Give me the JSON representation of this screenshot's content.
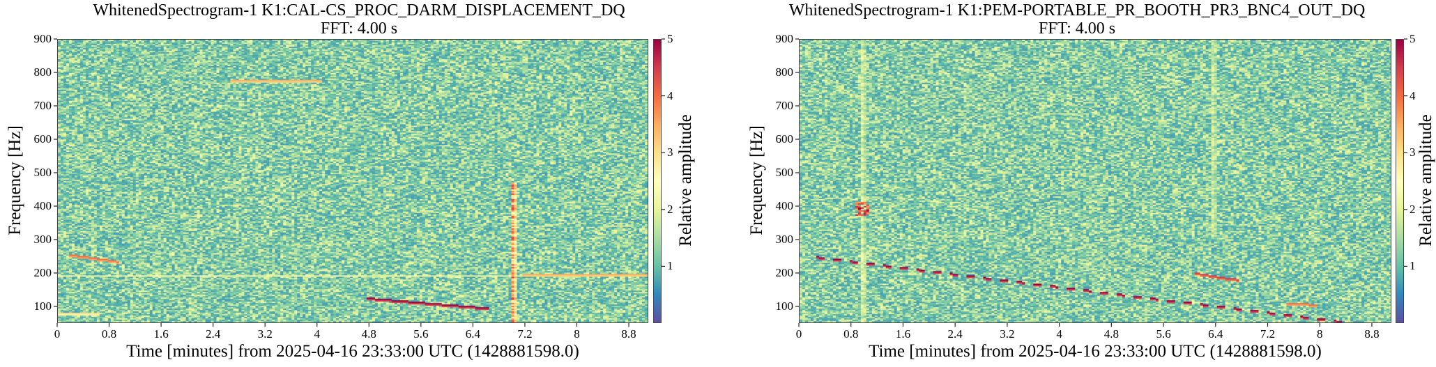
{
  "chart_data": [
    {
      "type": "heatmap",
      "title_line1": "WhitenedSpectrogram-1 K1:CAL-CS_PROC_DARM_DISPLACEMENT_DQ",
      "title_line2": "FFT: 4.00 s",
      "xlabel": "Time [minutes] from 2025-04-16 23:33:00 UTC (1428881598.0)",
      "ylabel": "Frequency [Hz]",
      "colorbar_label": "Relative amplitude",
      "xlim": [
        0,
        9.1
      ],
      "ylim": [
        50,
        900
      ],
      "x_ticks": [
        "0",
        "0.8",
        "1.6",
        "2.4",
        "3.2",
        "4",
        "4.8",
        "5.6",
        "6.4",
        "7.2",
        "8",
        "8.8"
      ],
      "y_ticks": [
        "100",
        "200",
        "300",
        "400",
        "500",
        "600",
        "700",
        "800",
        "900"
      ],
      "colorbar_range": [
        0,
        5
      ],
      "colorbar_ticks": [
        "1",
        "2",
        "3",
        "4",
        "5"
      ],
      "colormap": "Spectral_r",
      "features": [
        {
          "kind": "vertical_band",
          "t": 7.0,
          "f_from": 50,
          "f_to": 470,
          "level": 4.5
        },
        {
          "kind": "horizontal_line",
          "f": 192,
          "t_from": 0,
          "t_to": 9.1,
          "level": 2.6
        },
        {
          "kind": "line",
          "t_from": 4.8,
          "t_to": 6.6,
          "f_from": 125,
          "f_to": 95,
          "level": 5
        },
        {
          "kind": "line",
          "t_from": 0.2,
          "t_to": 0.9,
          "f_from": 255,
          "f_to": 235,
          "level": 4
        },
        {
          "kind": "line",
          "t_from": 7.2,
          "t_to": 9.1,
          "f_from": 195,
          "f_to": 195,
          "level": 3.5
        },
        {
          "kind": "line",
          "t_from": 2.7,
          "t_to": 4.0,
          "f_from": 780,
          "f_to": 780,
          "level": 3.5
        },
        {
          "kind": "line",
          "t_from": 0.0,
          "t_to": 0.6,
          "f_from": 80,
          "f_to": 80,
          "level": 3
        }
      ]
    },
    {
      "type": "heatmap",
      "title_line1": "WhitenedSpectrogram-1 K1:PEM-PORTABLE_PR_BOOTH_PR3_BNC4_OUT_DQ",
      "title_line2": "FFT: 4.00 s",
      "xlabel": "Time [minutes] from 2025-04-16 23:33:00 UTC (1428881598.0)",
      "ylabel": "Frequency [Hz]",
      "colorbar_label": "Relative amplitude",
      "xlim": [
        0,
        9.1
      ],
      "ylim": [
        50,
        900
      ],
      "x_ticks": [
        "0",
        "0.8",
        "1.6",
        "2.4",
        "3.2",
        "4",
        "4.8",
        "5.6",
        "6.4",
        "7.2",
        "8",
        "8.8"
      ],
      "y_ticks": [
        "100",
        "200",
        "300",
        "400",
        "500",
        "600",
        "700",
        "800",
        "900"
      ],
      "colorbar_range": [
        0,
        5
      ],
      "colorbar_ticks": [
        "1",
        "2",
        "3",
        "4",
        "5"
      ],
      "colormap": "Spectral_r",
      "features": [
        {
          "kind": "dashed_line",
          "t_from": 0.2,
          "t_to": 8.3,
          "f_from": 250,
          "f_to": 55,
          "level": 5
        },
        {
          "kind": "vertical_band",
          "t": 0.95,
          "f_from": 50,
          "f_to": 900,
          "level": 2.4
        },
        {
          "kind": "blob",
          "t": 0.95,
          "f": 395,
          "level": 5
        },
        {
          "kind": "vertical_band",
          "t": 6.35,
          "f_from": 300,
          "f_to": 900,
          "level": 2.3
        },
        {
          "kind": "line",
          "t_from": 6.1,
          "t_to": 6.7,
          "f_from": 200,
          "f_to": 180,
          "level": 4.5
        },
        {
          "kind": "line",
          "t_from": 7.5,
          "t_to": 7.9,
          "f_from": 110,
          "f_to": 105,
          "level": 4
        }
      ]
    }
  ]
}
